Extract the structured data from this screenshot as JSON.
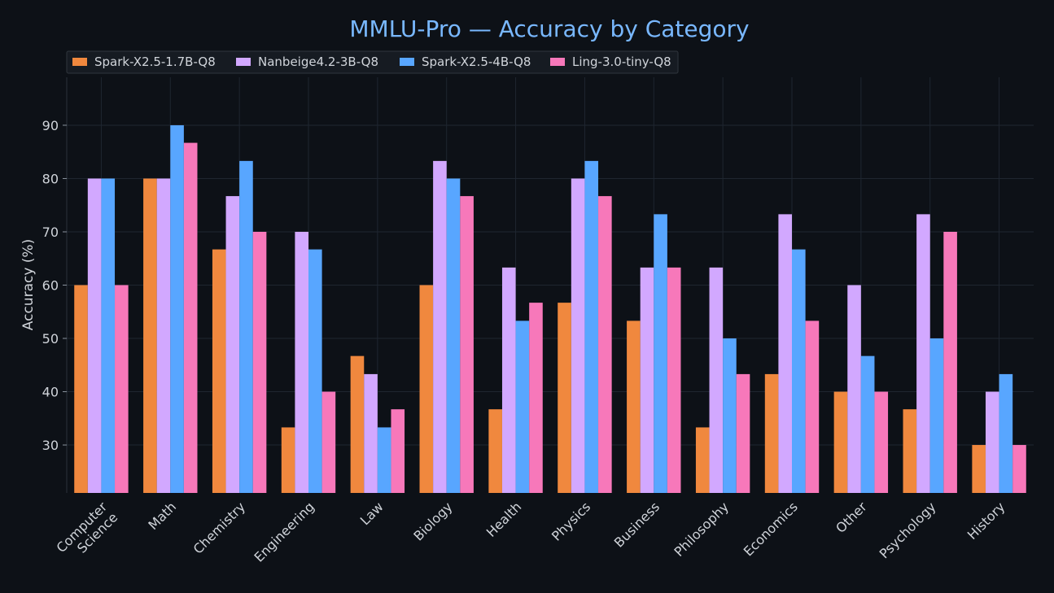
{
  "chart_data": {
    "type": "bar",
    "title": "MMLU-Pro — Accuracy by Category",
    "xlabel": "",
    "ylabel": "Accuracy (%)",
    "ylim": [
      21,
      99
    ],
    "yticks": [
      30,
      40,
      50,
      60,
      70,
      80,
      90
    ],
    "grid": true,
    "legend_position": "top-left",
    "categories": [
      "Computer Science",
      "Math",
      "Chemistry",
      "Engineering",
      "Law",
      "Biology",
      "Health",
      "Physics",
      "Business",
      "Philosophy",
      "Economics",
      "Other",
      "Psychology",
      "History"
    ],
    "series": [
      {
        "name": "Spark-X2.5-1.7B-Q8",
        "color": "#f0883e",
        "values": [
          60.0,
          80.0,
          66.7,
          33.3,
          46.7,
          60.0,
          36.7,
          56.7,
          53.3,
          33.3,
          43.3,
          40.0,
          36.7,
          30.0
        ]
      },
      {
        "name": "Nanbeige4.2-3B-Q8",
        "color": "#d2a8ff",
        "values": [
          80.0,
          80.0,
          76.7,
          70.0,
          43.3,
          83.3,
          63.3,
          80.0,
          63.3,
          63.3,
          73.3,
          60.0,
          73.3,
          40.0
        ]
      },
      {
        "name": "Spark-X2.5-4B-Q8",
        "color": "#58a6ff",
        "values": [
          80.0,
          90.0,
          83.3,
          66.7,
          33.3,
          80.0,
          53.3,
          83.3,
          73.3,
          50.0,
          66.7,
          46.7,
          50.0,
          43.3
        ]
      },
      {
        "name": "Ling-3.0-tiny-Q8",
        "color": "#f778ba",
        "values": [
          60.0,
          86.7,
          70.0,
          40.0,
          36.7,
          76.7,
          56.7,
          76.7,
          63.3,
          43.3,
          53.3,
          40.0,
          70.0,
          30.0
        ]
      }
    ]
  }
}
